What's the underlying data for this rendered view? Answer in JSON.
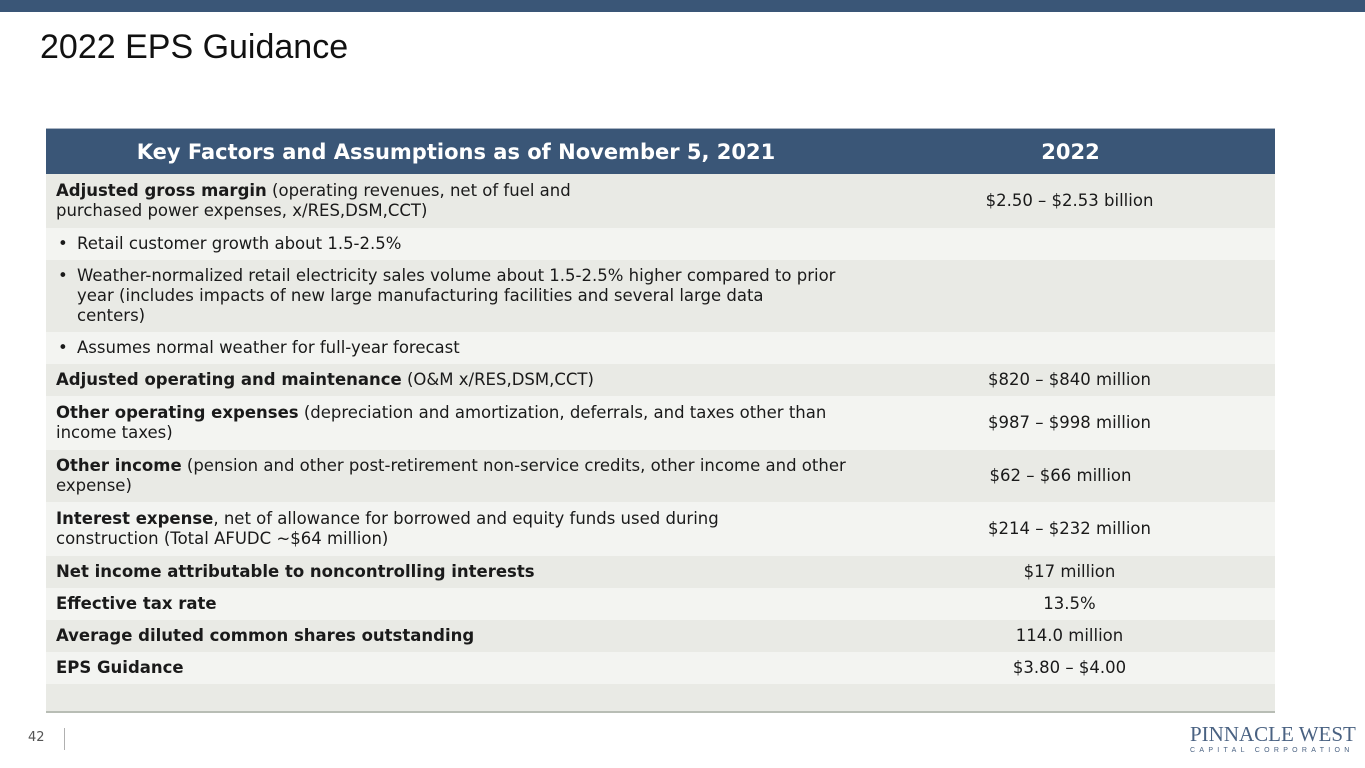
{
  "page": {
    "title": "2022 EPS Guidance",
    "page_number": "42"
  },
  "table": {
    "header": {
      "col1": "Key Factors and Assumptions as of November 5, 2021",
      "col2": "2022"
    },
    "rows": [
      {
        "bold": "Adjusted gross margin",
        "rest": " (operating revenues, net of fuel and",
        "rest2": "purchased power expenses, x/RES,DSM,CCT)",
        "value": "$2.50 – $2.53 billion"
      },
      {
        "bullet": "•",
        "text": "Retail customer growth about 1.5-2.5%",
        "value": ""
      },
      {
        "bullet": "•",
        "text": "Weather-normalized retail electricity sales volume about 1.5-2.5% higher compared to prior year (includes impacts of new large manufacturing facilities and several large data centers)",
        "value": ""
      },
      {
        "bullet": "•",
        "text": "Assumes normal weather for full-year forecast",
        "value": ""
      },
      {
        "bold": "Adjusted operating and maintenance",
        "rest": " (O&M x/RES,DSM,CCT)",
        "value": "$820 – $840 million"
      },
      {
        "bold": "Other operating expenses",
        "rest": " (depreciation and amortization, deferrals, and taxes other than income taxes)",
        "value": "$987 – $998 million"
      },
      {
        "bold": "Other income",
        "rest": " (pension and other post-retirement non-service credits, other income and other expense)",
        "value": "$62 – $66 million"
      },
      {
        "bold": "Interest expense",
        "rest": ", net of allowance for borrowed and equity funds used during",
        "rest2": "construction (Total AFUDC ~$64 million)",
        "value": "$214 – $232 million"
      },
      {
        "bold": "Net income attributable to noncontrolling interests",
        "rest": "",
        "value": "$17 million"
      },
      {
        "bold": "Effective tax rate",
        "rest": "",
        "value": "13.5%"
      },
      {
        "bold": "Average diluted common shares outstanding",
        "rest": "",
        "value": "114.0 million"
      },
      {
        "bold": "EPS Guidance",
        "rest": "",
        "value": "$3.80 – $4.00"
      }
    ]
  },
  "logo": {
    "main": "PINNACLE WEST",
    "sub": "CAPITAL CORPORATION"
  },
  "colors": {
    "accent": "#3a5677",
    "row_dark": "#e9eae5",
    "row_light": "#f3f4f1"
  }
}
